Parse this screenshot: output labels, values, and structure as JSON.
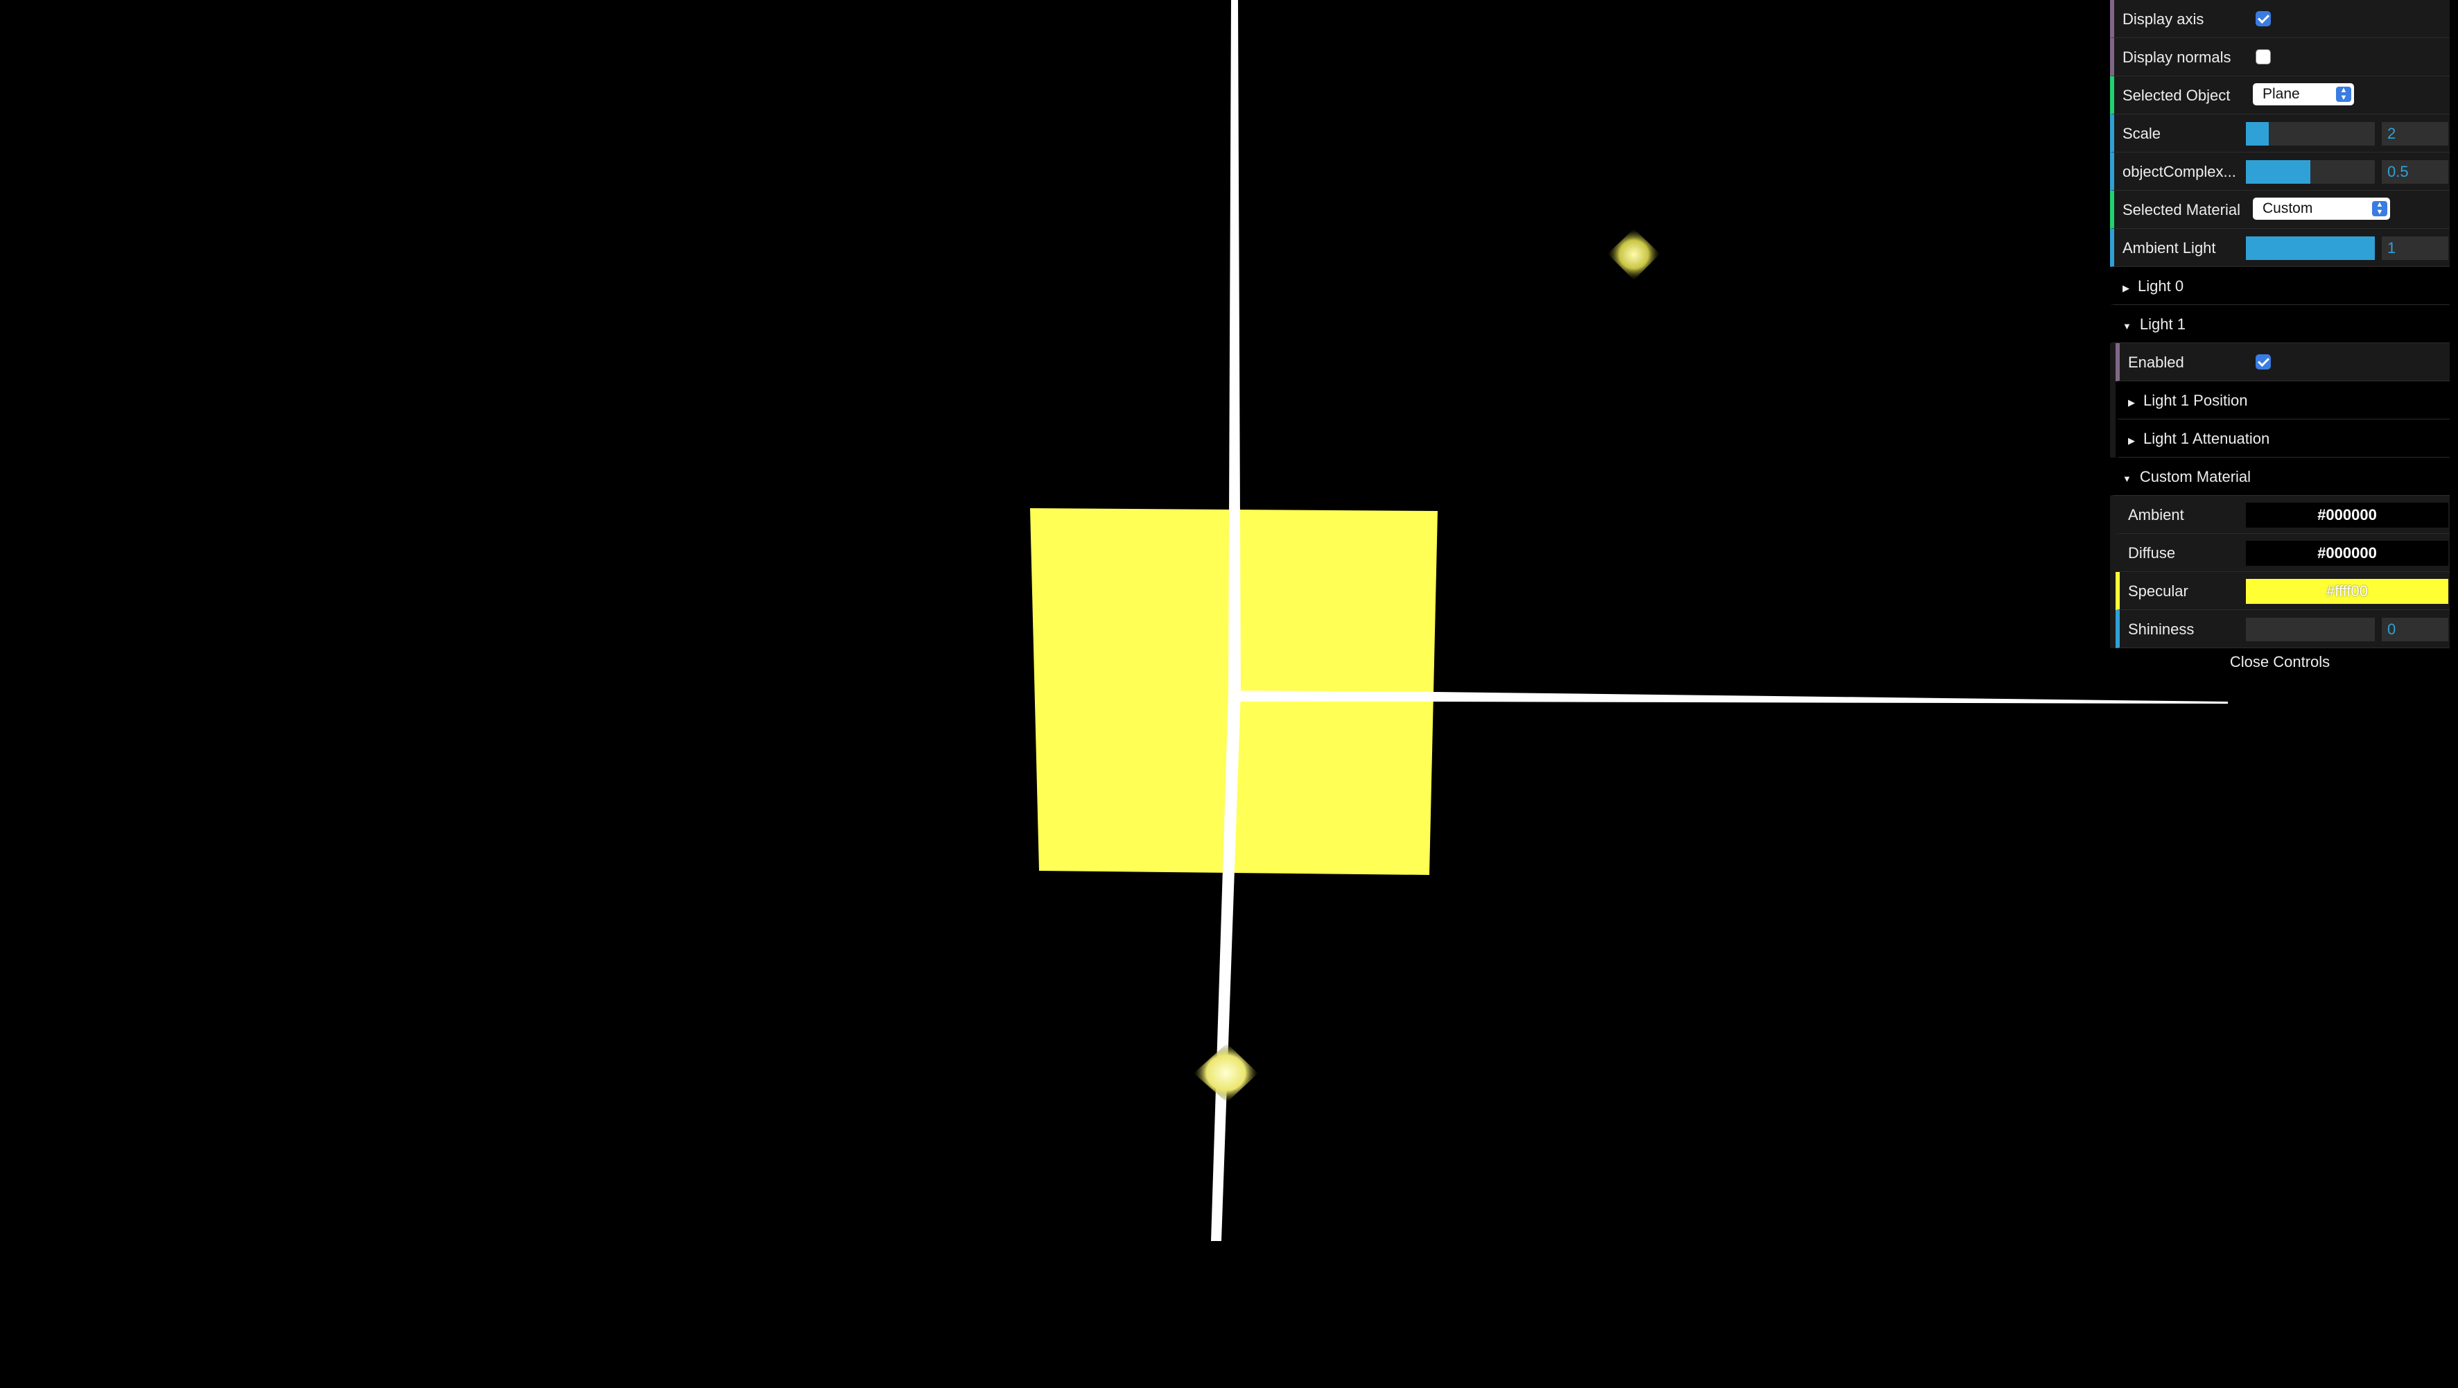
{
  "gui": {
    "display_axis": {
      "label": "Display axis",
      "checked": true
    },
    "display_normals": {
      "label": "Display normals",
      "checked": false
    },
    "selected_object": {
      "label": "Selected Object",
      "value": "Plane"
    },
    "scale": {
      "label": "Scale",
      "value": "2",
      "fraction": 0.18
    },
    "object_complexity": {
      "label": "objectComplex...",
      "value": "0.5",
      "fraction": 0.5
    },
    "selected_material": {
      "label": "Selected Material",
      "value": "Custom"
    },
    "ambient_light": {
      "label": "Ambient Light",
      "value": "1",
      "fraction": 1.0
    },
    "light0": {
      "label": "Light 0"
    },
    "light1": {
      "label": "Light 1"
    },
    "light1_enabled": {
      "label": "Enabled",
      "checked": true
    },
    "light1_position": {
      "label": "Light 1 Position"
    },
    "light1_attenuation": {
      "label": "Light 1 Attenuation"
    },
    "custom_material": {
      "label": "Custom Material"
    },
    "ambient": {
      "label": "Ambient",
      "value": "#000000"
    },
    "diffuse": {
      "label": "Diffuse",
      "value": "#000000"
    },
    "specular": {
      "label": "Specular",
      "value": "#ffff00"
    },
    "shininess": {
      "label": "Shininess",
      "value": "0",
      "fraction": 0.0
    },
    "close_label": "Close Controls"
  },
  "colors": {
    "plane": "#ffff55",
    "axis": "#ffffff",
    "light_marker": "#f2f06a",
    "specular_swatch": "#ffff33"
  }
}
